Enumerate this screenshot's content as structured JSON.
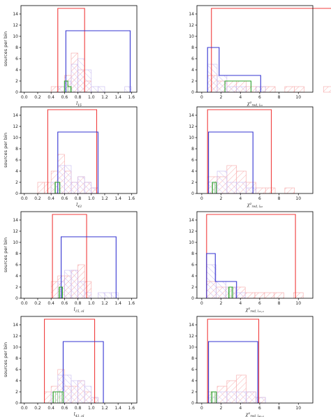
{
  "colors": {
    "red": "#f03c3c",
    "blue": "#3434d2",
    "green": "#2ca02c",
    "pink": "#f6a5a5",
    "lavender": "#c7b9f0",
    "light_green": "#9ed89e"
  },
  "chart_data": [
    {
      "type": "histogram",
      "xlabel": "l15",
      "xlabel_main": "l",
      "xlabel_sub": "15",
      "ylabel": "sources per bin",
      "xlim": [
        -0.05,
        1.68
      ],
      "ylim": [
        0,
        15.5
      ],
      "xticks": [
        0.0,
        0.2,
        0.4,
        0.6,
        0.8,
        1.0,
        1.2,
        1.4,
        1.6
      ],
      "yticks": [
        0,
        2,
        4,
        6,
        8,
        10,
        12,
        14
      ],
      "series": [
        {
          "style": "red",
          "kind": "step",
          "edges": [
            0.5,
            0.9
          ],
          "counts": [
            15
          ]
        },
        {
          "style": "blue",
          "kind": "step",
          "edges": [
            0.62,
            1.58
          ],
          "counts": [
            11
          ]
        },
        {
          "style": "green",
          "kind": "step",
          "edges": [
            0.6,
            0.65,
            0.7
          ],
          "counts": [
            2,
            1
          ]
        },
        {
          "style": "pink",
          "kind": "hatch",
          "edges": [
            0.4,
            0.5,
            0.6,
            0.7,
            0.8,
            0.9,
            1.0
          ],
          "counts": [
            1,
            1,
            3,
            7,
            4,
            2
          ]
        },
        {
          "style": "lavender",
          "kind": "hatch",
          "edges": [
            0.5,
            0.6,
            0.7,
            0.8,
            0.9,
            1.0,
            1.1,
            1.2,
            1.3,
            1.4,
            1.5,
            1.6
          ],
          "counts": [
            1,
            2,
            5,
            6,
            4,
            1,
            1,
            0,
            0,
            0,
            1
          ]
        },
        {
          "style": "light_green",
          "kind": "hatch",
          "edges": [
            0.6,
            0.65,
            0.7
          ],
          "counts": [
            2,
            1
          ]
        }
      ]
    },
    {
      "type": "histogram",
      "xlabel": "χ²red,l15",
      "xlabel_main": "χ²",
      "xlabel_sub": "red, l₁₅",
      "ylabel": "",
      "xlim": [
        -0.5,
        11.5
      ],
      "ylim": [
        0,
        15.5
      ],
      "xticks": [
        0,
        2,
        4,
        6,
        8,
        10
      ],
      "yticks": [
        0,
        2,
        4,
        6,
        8,
        10,
        12,
        14
      ],
      "series": [
        {
          "style": "red",
          "kind": "step",
          "edges": [
            1.0,
            13.7
          ],
          "counts": [
            15
          ]
        },
        {
          "style": "blue",
          "kind": "step",
          "edges": [
            0.6,
            1.8,
            6.1
          ],
          "counts": [
            8,
            3
          ]
        },
        {
          "style": "green",
          "kind": "step",
          "edges": [
            2.4,
            5.1
          ],
          "counts": [
            2
          ]
        },
        {
          "style": "pink",
          "kind": "hatch",
          "edges": [
            0.6,
            1.6,
            2.6,
            3.6,
            4.6,
            5.6,
            6.6,
            7.6,
            8.6,
            9.6,
            10.6,
            11.6,
            12.6,
            13.6,
            14.6
          ],
          "counts": [
            3,
            2,
            2,
            2,
            1,
            1,
            1,
            0,
            1,
            1,
            0,
            0,
            1,
            1
          ]
        },
        {
          "style": "lavender",
          "kind": "hatch",
          "edges": [
            0.6,
            1.6,
            2.6,
            3.6,
            4.6,
            5.6,
            6.6
          ],
          "counts": [
            5,
            3,
            1,
            1,
            0,
            1
          ]
        }
      ]
    },
    {
      "type": "histogram",
      "xlabel": "l43",
      "xlabel_main": "l",
      "xlabel_sub": "43",
      "ylabel": "sources per bin",
      "xlim": [
        -0.05,
        1.68
      ],
      "ylim": [
        0,
        15.5
      ],
      "xticks": [
        0.0,
        0.2,
        0.4,
        0.6,
        0.8,
        1.0,
        1.2,
        1.4,
        1.6
      ],
      "yticks": [
        0,
        2,
        4,
        6,
        8,
        10,
        12,
        14
      ],
      "series": [
        {
          "style": "red",
          "kind": "step",
          "edges": [
            0.35,
            1.08
          ],
          "counts": [
            15
          ]
        },
        {
          "style": "blue",
          "kind": "step",
          "edges": [
            0.5,
            1.1
          ],
          "counts": [
            11
          ]
        },
        {
          "style": "green",
          "kind": "step",
          "edges": [
            0.46,
            0.53
          ],
          "counts": [
            2
          ]
        },
        {
          "style": "pink",
          "kind": "hatch",
          "edges": [
            0.2,
            0.3,
            0.4,
            0.5,
            0.6,
            0.7,
            0.8,
            0.9,
            1.0,
            1.1
          ],
          "counts": [
            2,
            2,
            4,
            7,
            4,
            2,
            3,
            2,
            1
          ]
        },
        {
          "style": "lavender",
          "kind": "hatch",
          "edges": [
            0.4,
            0.5,
            0.6,
            0.7,
            0.8,
            0.9,
            1.0,
            1.1,
            1.2
          ],
          "counts": [
            2,
            5,
            5,
            2,
            3,
            2,
            1,
            0
          ]
        },
        {
          "style": "light_green",
          "kind": "hatch",
          "edges": [
            0.46,
            0.53
          ],
          "counts": [
            2
          ]
        }
      ]
    },
    {
      "type": "histogram",
      "xlabel": "χ²red,l43",
      "xlabel_main": "χ²",
      "xlabel_sub": "red, l₄₃",
      "ylabel": "",
      "xlim": [
        -0.5,
        11.5
      ],
      "ylim": [
        0,
        15.5
      ],
      "xticks": [
        0,
        2,
        4,
        6,
        8,
        10
      ],
      "yticks": [
        0,
        2,
        4,
        6,
        8,
        10,
        12,
        14
      ],
      "series": [
        {
          "style": "red",
          "kind": "step",
          "edges": [
            0.6,
            7.2
          ],
          "counts": [
            15
          ]
        },
        {
          "style": "blue",
          "kind": "step",
          "edges": [
            0.7,
            5.3
          ],
          "counts": [
            11
          ]
        },
        {
          "style": "green",
          "kind": "step",
          "edges": [
            1.1,
            1.5
          ],
          "counts": [
            2
          ]
        },
        {
          "style": "pink",
          "kind": "hatch",
          "edges": [
            0.6,
            1.6,
            2.6,
            3.6,
            4.6,
            5.6,
            6.6,
            7.6,
            8.6,
            9.6
          ],
          "counts": [
            3,
            3,
            5,
            4,
            2,
            1,
            1,
            0,
            1
          ]
        },
        {
          "style": "lavender",
          "kind": "hatch",
          "edges": [
            0.6,
            1.6,
            2.6,
            3.6,
            4.6,
            5.6
          ],
          "counts": [
            2,
            4,
            2,
            2,
            1
          ]
        },
        {
          "style": "light_green",
          "kind": "hatch",
          "edges": [
            1.1,
            1.5
          ],
          "counts": [
            2
          ]
        }
      ]
    },
    {
      "type": "histogram",
      "xlabel": "l15,ol",
      "xlabel_main": "l",
      "xlabel_sub": "15, ol",
      "ylabel": "sources per bin",
      "xlim": [
        -0.05,
        1.68
      ],
      "ylim": [
        0,
        15.5
      ],
      "xticks": [
        0.0,
        0.2,
        0.4,
        0.6,
        0.8,
        1.0,
        1.2,
        1.4,
        1.6
      ],
      "yticks": [
        0,
        2,
        4,
        6,
        8,
        10,
        12,
        14
      ],
      "series": [
        {
          "style": "red",
          "kind": "step",
          "edges": [
            0.42,
            0.93
          ],
          "counts": [
            15
          ]
        },
        {
          "style": "blue",
          "kind": "step",
          "edges": [
            0.55,
            1.37
          ],
          "counts": [
            11
          ]
        },
        {
          "style": "green",
          "kind": "step",
          "edges": [
            0.52,
            0.57
          ],
          "counts": [
            2
          ]
        },
        {
          "style": "pink",
          "kind": "hatch",
          "edges": [
            0.4,
            0.5,
            0.6,
            0.7,
            0.8,
            0.9,
            1.0
          ],
          "counts": [
            3,
            4,
            4,
            5,
            6,
            3
          ]
        },
        {
          "style": "lavender",
          "kind": "hatch",
          "edges": [
            0.5,
            0.6,
            0.7,
            0.8,
            0.9,
            1.0,
            1.1,
            1.2,
            1.3,
            1.4
          ],
          "counts": [
            3,
            5,
            5,
            3,
            1,
            0,
            1,
            1,
            1
          ]
        },
        {
          "style": "light_green",
          "kind": "hatch",
          "edges": [
            0.52,
            0.57
          ],
          "counts": [
            2
          ]
        }
      ]
    },
    {
      "type": "histogram",
      "xlabel": "χ²red,l15,ol",
      "xlabel_main": "χ²",
      "xlabel_sub": "red, l₁₅,ₒₗ",
      "ylabel": "",
      "xlim": [
        -0.5,
        11.5
      ],
      "ylim": [
        0,
        15.5
      ],
      "xticks": [
        0,
        2,
        4,
        6,
        8,
        10
      ],
      "yticks": [
        0,
        2,
        4,
        6,
        8,
        10,
        12,
        14
      ],
      "series": [
        {
          "style": "red",
          "kind": "step",
          "edges": [
            0.5,
            9.7
          ],
          "counts": [
            15
          ]
        },
        {
          "style": "blue",
          "kind": "step",
          "edges": [
            0.5,
            1.4,
            3.6
          ],
          "counts": [
            8,
            3
          ]
        },
        {
          "style": "green",
          "kind": "step",
          "edges": [
            2.8,
            3.2
          ],
          "counts": [
            2
          ]
        },
        {
          "style": "pink",
          "kind": "hatch",
          "edges": [
            0.5,
            1.5,
            2.5,
            3.5,
            4.5,
            5.5,
            6.5,
            7.5,
            8.5,
            9.5,
            10.5
          ],
          "counts": [
            3,
            2,
            2,
            2,
            1,
            1,
            1,
            1,
            0,
            1
          ]
        },
        {
          "style": "lavender",
          "kind": "hatch",
          "edges": [
            0.5,
            1.5,
            2.5,
            3.5,
            4.5
          ],
          "counts": [
            6,
            3,
            2,
            1
          ]
        },
        {
          "style": "light_green",
          "kind": "hatch",
          "edges": [
            2.8,
            3.2
          ],
          "counts": [
            2
          ]
        }
      ]
    },
    {
      "type": "histogram",
      "xlabel": "l43,ol",
      "xlabel_main": "l",
      "xlabel_sub": "43, ol",
      "ylabel": "sources per bin",
      "xlim": [
        -0.05,
        1.68
      ],
      "ylim": [
        0,
        15.5
      ],
      "xticks": [
        0.0,
        0.2,
        0.4,
        0.6,
        0.8,
        1.0,
        1.2,
        1.4,
        1.6
      ],
      "yticks": [
        0,
        2,
        4,
        6,
        8,
        10,
        12,
        14
      ],
      "series": [
        {
          "style": "red",
          "kind": "step",
          "edges": [
            0.3,
            1.05
          ],
          "counts": [
            15
          ]
        },
        {
          "style": "blue",
          "kind": "step",
          "edges": [
            0.58,
            1.18
          ],
          "counts": [
            11
          ]
        },
        {
          "style": "green",
          "kind": "step",
          "edges": [
            0.43,
            0.58
          ],
          "counts": [
            2
          ]
        },
        {
          "style": "pink",
          "kind": "hatch",
          "edges": [
            0.3,
            0.4,
            0.5,
            0.6,
            0.7,
            0.8,
            0.9,
            1.0,
            1.1
          ],
          "counts": [
            2,
            3,
            6,
            3,
            3,
            4,
            2,
            1
          ]
        },
        {
          "style": "lavender",
          "kind": "hatch",
          "edges": [
            0.4,
            0.5,
            0.6,
            0.7,
            0.8,
            0.9,
            1.0,
            1.1,
            1.2
          ],
          "counts": [
            2,
            5,
            5,
            4,
            4,
            3,
            1,
            0
          ]
        },
        {
          "style": "light_green",
          "kind": "hatch",
          "edges": [
            0.43,
            0.58
          ],
          "counts": [
            2
          ]
        }
      ]
    },
    {
      "type": "histogram",
      "xlabel": "χ²red,l43,ol",
      "xlabel_main": "χ²",
      "xlabel_sub": "red, l₄₃,ₒₗ",
      "ylabel": "",
      "xlim": [
        -0.5,
        11.5
      ],
      "ylim": [
        0,
        15.5
      ],
      "xticks": [
        0,
        2,
        4,
        6,
        8,
        10
      ],
      "yticks": [
        0,
        2,
        4,
        6,
        8,
        10,
        12,
        14
      ],
      "series": [
        {
          "style": "red",
          "kind": "step",
          "edges": [
            0.6,
            5.9
          ],
          "counts": [
            15
          ]
        },
        {
          "style": "blue",
          "kind": "step",
          "edges": [
            0.7,
            5.8
          ],
          "counts": [
            11
          ]
        },
        {
          "style": "green",
          "kind": "step",
          "edges": [
            1.0,
            1.5
          ],
          "counts": [
            2
          ]
        },
        {
          "style": "pink",
          "kind": "hatch",
          "edges": [
            0.6,
            1.6,
            2.6,
            3.6,
            4.6,
            5.6,
            6.6
          ],
          "counts": [
            2,
            3,
            4,
            5,
            2,
            1
          ]
        },
        {
          "style": "lavender",
          "kind": "hatch",
          "edges": [
            0.6,
            1.6,
            2.6,
            3.6,
            4.6,
            5.6,
            6.6
          ],
          "counts": [
            1,
            2,
            2,
            2,
            2,
            1
          ]
        },
        {
          "style": "light_green",
          "kind": "hatch",
          "edges": [
            1.0,
            1.5
          ],
          "counts": [
            2
          ]
        }
      ]
    }
  ]
}
